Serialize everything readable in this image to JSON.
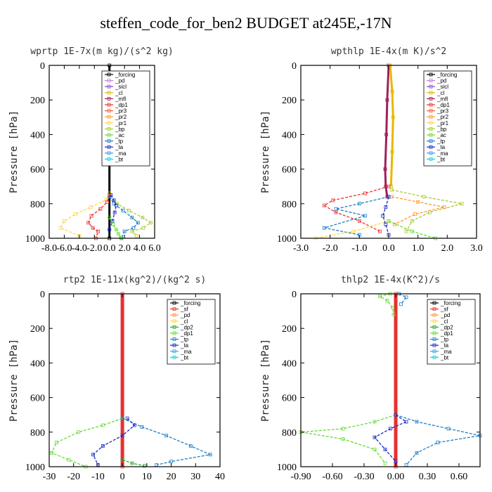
{
  "title": "steffen_code_for_ben2  BUDGET at245E,-17N",
  "colors": {
    "forcing": "#000000",
    "pd": "#c77fd8",
    "sicl": "#7a55c8",
    "cl": "#e6b800",
    "mfl": "#a0205a",
    "dp1": "#f03030",
    "pr3": "#ff5a28",
    "pr2": "#ff9a30",
    "pr1": "#ffd84a",
    "bp": "#aacc33",
    "ac": "#66dd33",
    "tp": "#1e7fc8",
    "ta": "#1a2ac8",
    "ma": "#3aa0d8",
    "bt": "#00d8e8",
    "sf": "#e83030",
    "dp2": "#22aa22",
    "dp1g": "#66dd33"
  },
  "chart_data": [
    {
      "type": "line",
      "title": "wprtp  1E-7x(m kg)/(s^2 kg)",
      "ylabel": "Pressure [hPa]",
      "xlim": [
        -8,
        6
      ],
      "ylim": [
        1000,
        0
      ],
      "xticks": [
        "-8.0",
        "-6.0",
        "-4.0",
        "-2.0",
        "0.0",
        "2.0",
        "4.0",
        "6.0"
      ],
      "xtick_values": [
        -8,
        -6,
        -4,
        -2,
        0,
        2,
        4,
        6
      ],
      "yticks": [
        0,
        200,
        400,
        600,
        800,
        1000
      ],
      "legend": [
        "_forcing",
        "_pd",
        "_sicl",
        "_cl",
        "_mfl",
        "_dp1",
        "_pr3",
        "_pr2",
        "_pr1",
        "_bp",
        "_ac",
        "_tp",
        "_ta",
        "_ma",
        "_bt"
      ],
      "legend_colors": [
        "forcing",
        "pd",
        "sicl",
        "cl",
        "mfl",
        "dp1",
        "pr3",
        "pr2",
        "pr1",
        "bp",
        "ac",
        "tp",
        "ta",
        "ma",
        "bt"
      ],
      "series": [
        {
          "name": "_forcing",
          "color": "forcing",
          "x": [
            0,
            0
          ],
          "y": [
            0,
            1000
          ],
          "width": 3
        },
        {
          "name": "_pr1",
          "color": "pr1",
          "x": [
            0,
            -0.5,
            -2.5,
            -4.5,
            -6.0,
            -6.5,
            -4.0
          ],
          "y": [
            740,
            780,
            820,
            860,
            900,
            940,
            985
          ]
        },
        {
          "name": "_dp1",
          "color": "dp1",
          "x": [
            0,
            -0.3,
            -1.2,
            -2.4,
            -2.8,
            -2.2,
            -1.5,
            -1.8
          ],
          "y": [
            750,
            790,
            830,
            870,
            910,
            940,
            960,
            1000
          ]
        },
        {
          "name": "_bp",
          "color": "bp",
          "x": [
            0,
            1.0,
            2.6,
            4.4,
            5.5,
            4.5,
            3.0,
            3.6
          ],
          "y": [
            760,
            800,
            840,
            880,
            910,
            940,
            960,
            985
          ]
        },
        {
          "name": "_tp",
          "color": "tp",
          "x": [
            0,
            0.6,
            1.8,
            3.0,
            3.8,
            3.2,
            2.0,
            1.6
          ],
          "y": [
            760,
            800,
            840,
            880,
            910,
            940,
            960,
            1000
          ]
        },
        {
          "name": "_ta",
          "color": "ta",
          "x": [
            0.2,
            0.6,
            0.9,
            0.7,
            0.4,
            0.0
          ],
          "y": [
            750,
            780,
            810,
            850,
            900,
            950
          ]
        },
        {
          "name": "_ac",
          "color": "ac",
          "x": [
            0,
            0.5,
            0.9,
            1.2,
            1.5
          ],
          "y": [
            880,
            920,
            950,
            975,
            995
          ]
        }
      ]
    },
    {
      "type": "line",
      "title": "wpthlp  1E-4x(m K)/s^2",
      "ylabel": "Pressure [hPa]",
      "xlim": [
        -3,
        3
      ],
      "ylim": [
        1000,
        0
      ],
      "xticks": [
        "-3.0",
        "-2.0",
        "-1.0",
        "0.0",
        "1.0",
        "2.0",
        "3.0"
      ],
      "xtick_values": [
        -3,
        -2,
        -1,
        0,
        1,
        2,
        3
      ],
      "yticks": [
        0,
        200,
        400,
        600,
        800,
        1000
      ],
      "legend": [
        "_forcing",
        "_pd",
        "_sicl",
        "_cl",
        "_mfl",
        "_dp1",
        "_pr3",
        "_pr2",
        "_pr1",
        "_bp",
        "_ac",
        "_tp",
        "_ta",
        "_ma",
        "_bt"
      ],
      "legend_colors": [
        "forcing",
        "pd",
        "sicl",
        "cl",
        "mfl",
        "dp1",
        "pr3",
        "pr2",
        "pr1",
        "bp",
        "ac",
        "tp",
        "ta",
        "ma",
        "bt"
      ],
      "series": [
        {
          "name": "_mfl",
          "color": "mfl",
          "x": [
            0,
            -0.05,
            -0.08,
            -0.12,
            -0.1,
            -0.05
          ],
          "y": [
            0,
            200,
            400,
            600,
            700,
            760
          ],
          "width": 3
        },
        {
          "name": "_cl",
          "color": "cl",
          "x": [
            0.05,
            0.12,
            0.15,
            0.12,
            0.08
          ],
          "y": [
            0,
            150,
            300,
            500,
            700
          ],
          "width": 3
        },
        {
          "name": "_dp1",
          "color": "dp1",
          "x": [
            0,
            -0.8,
            -1.9,
            -2.2,
            -1.8,
            -1.0,
            -0.3
          ],
          "y": [
            700,
            740,
            780,
            810,
            850,
            900,
            960
          ]
        },
        {
          "name": "_bp",
          "color": "bp",
          "x": [
            0.1,
            1.2,
            2.5,
            1.4,
            0.8,
            0.6
          ],
          "y": [
            720,
            760,
            800,
            850,
            900,
            960
          ]
        },
        {
          "name": "_pr2",
          "color": "pr2",
          "x": [
            0.1,
            1.0,
            1.9,
            0.9,
            0.2
          ],
          "y": [
            760,
            790,
            820,
            860,
            920
          ]
        },
        {
          "name": "_tp",
          "color": "tp",
          "x": [
            0,
            -1.0,
            -1.8,
            -0.8,
            -2.2,
            -1.0
          ],
          "y": [
            760,
            800,
            830,
            870,
            940,
            980
          ]
        },
        {
          "name": "_pr1",
          "color": "pr1",
          "x": [
            0,
            -1.2,
            -2.5
          ],
          "y": [
            900,
            960,
            1000
          ]
        },
        {
          "name": "_ac",
          "color": "ac",
          "x": [
            0,
            0.8,
            1.6
          ],
          "y": [
            900,
            960,
            1000
          ]
        },
        {
          "name": "_ta",
          "color": "ta",
          "x": [
            0,
            -0.1,
            -0.2,
            -0.1,
            0
          ],
          "y": [
            760,
            820,
            870,
            920,
            980
          ]
        }
      ]
    },
    {
      "type": "line",
      "title": "rtp2  1E-11x(kg^2)/(kg^2 s)",
      "ylabel": "Pressure [hPa]",
      "xlim": [
        -30,
        40
      ],
      "ylim": [
        1000,
        0
      ],
      "xticks": [
        "-30",
        "-20",
        "-10",
        "0",
        "10",
        "20",
        "30",
        "40"
      ],
      "xtick_values": [
        -30,
        -20,
        -10,
        0,
        10,
        20,
        30,
        40
      ],
      "yticks": [
        0,
        200,
        400,
        600,
        800,
        1000
      ],
      "legend": [
        "_forcing",
        "_sf",
        "_pd",
        "_cl",
        "_dp2",
        "_dp1",
        "_tp",
        "_ta",
        "_ma",
        "_bt"
      ],
      "legend_colors": [
        "forcing",
        "sf",
        "pr2",
        "pr1",
        "dp2",
        "dp1g",
        "tp",
        "ta",
        "ma",
        "bt"
      ],
      "series": [
        {
          "name": "_forcing",
          "color": "sf",
          "x": [
            0,
            0
          ],
          "y": [
            0,
            1000
          ],
          "width": 5
        },
        {
          "name": "_dp1",
          "color": "dp1g",
          "x": [
            0,
            -8,
            -18,
            -27,
            -29,
            -22,
            -15
          ],
          "y": [
            720,
            760,
            800,
            860,
            920,
            960,
            1000
          ]
        },
        {
          "name": "_tp",
          "color": "tp",
          "x": [
            0,
            8,
            18,
            28,
            36,
            20,
            14
          ],
          "y": [
            720,
            770,
            820,
            880,
            930,
            970,
            990
          ]
        },
        {
          "name": "_ta",
          "color": "ta",
          "x": [
            2,
            5,
            0,
            -8,
            -12,
            -10
          ],
          "y": [
            720,
            760,
            820,
            880,
            930,
            990
          ]
        },
        {
          "name": "_dp2",
          "color": "dp2",
          "x": [
            0,
            4,
            9
          ],
          "y": [
            960,
            980,
            995
          ]
        }
      ]
    },
    {
      "type": "line",
      "title": "thlp2  1E-4x(K^2)/s",
      "ylabel": "Pressure [hPa]",
      "xlim": [
        -0.9,
        0.8
      ],
      "ylim": [
        1000,
        0
      ],
      "xticks": [
        "-0.90",
        "-0.60",
        "-0.30",
        "0.00",
        "0.30",
        "0.60"
      ],
      "xtick_values": [
        -0.9,
        -0.6,
        -0.3,
        0,
        0.3,
        0.6
      ],
      "yticks": [
        0,
        200,
        400,
        600,
        800,
        1000
      ],
      "legend": [
        "_forcing",
        "_sf",
        "_pd",
        "_cl",
        "_dp2",
        "_dp1",
        "_tp",
        "_ta",
        "_ma",
        "_bt"
      ],
      "legend_colors": [
        "forcing",
        "sf",
        "pr2",
        "pr1",
        "dp2",
        "dp1g",
        "tp",
        "ta",
        "ma",
        "bt"
      ],
      "series": [
        {
          "name": "_forcing",
          "color": "sf",
          "x": [
            0,
            0
          ],
          "y": [
            0,
            1000
          ],
          "width": 5
        },
        {
          "name": "_dp1",
          "color": "dp1g",
          "x": [
            -0.05,
            -0.15,
            -0.08,
            -0.03,
            -0.02
          ],
          "y": [
            0,
            15,
            40,
            80,
            120
          ]
        },
        {
          "name": "_tp",
          "color": "tp",
          "x": [
            0.03,
            0.1,
            0.05
          ],
          "y": [
            0,
            20,
            60
          ]
        },
        {
          "name": "_dp1b",
          "color": "dp1g",
          "x": [
            0,
            -0.2,
            -0.5,
            -0.9,
            -0.5,
            -0.2,
            -0.1
          ],
          "y": [
            700,
            740,
            780,
            800,
            840,
            900,
            980
          ]
        },
        {
          "name": "_tpb",
          "color": "tp",
          "x": [
            0,
            0.2,
            0.5,
            0.8,
            0.4,
            0.2,
            0.1
          ],
          "y": [
            700,
            740,
            780,
            820,
            860,
            920,
            990
          ]
        },
        {
          "name": "_ta",
          "color": "ta",
          "x": [
            0,
            0.1,
            -0.05,
            -0.2,
            -0.1,
            0
          ],
          "y": [
            700,
            740,
            780,
            830,
            900,
            970
          ]
        }
      ]
    }
  ]
}
